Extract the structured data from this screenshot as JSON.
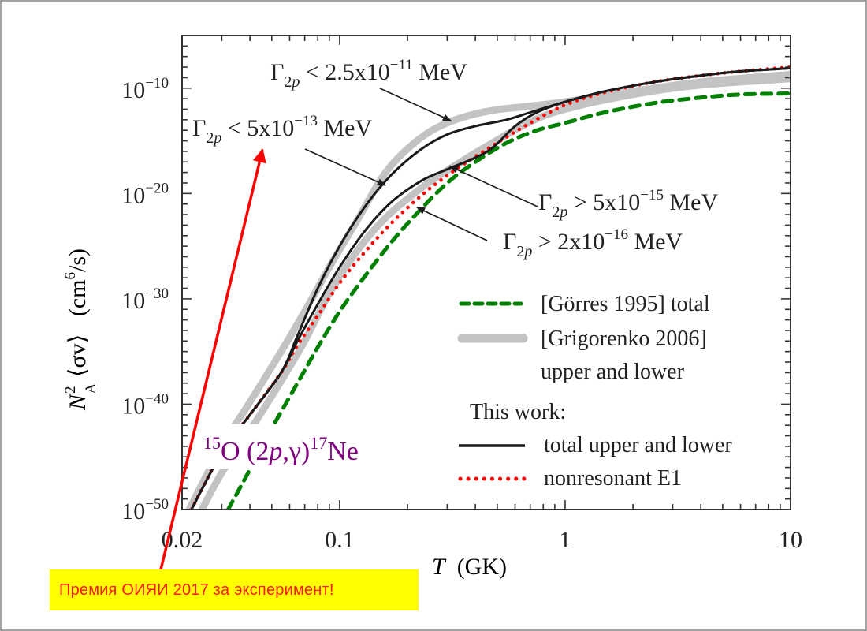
{
  "banner": {
    "text": "Премия ОИЯИ 2017 за эксперимент!",
    "background": "#ffff00",
    "text_color": "#ff1a1a"
  },
  "pointer_arrow": {
    "color": "#ff0000",
    "points_to": "Γ2p < 5x10^-13 MeV annotation"
  },
  "chart_data": {
    "type": "line",
    "title": "",
    "reaction_label": {
      "pre_sup": "15",
      "pre": "O (2",
      "italic": "p",
      "mid": ",γ)",
      "post_sup": "17",
      "post": "Ne",
      "color": "#800080"
    },
    "xlabel": {
      "italic": "T",
      "text": "(GK)"
    },
    "ylabel": {
      "main": "N",
      "sub": "A",
      "sup": "2",
      "rest": "⟨σv⟩",
      "units": "(cm",
      "units_sup": "6",
      "units_end": "/s)"
    },
    "xscale": "log",
    "yscale": "log",
    "xlim": [
      0.02,
      10
    ],
    "ylim_log10": [
      -50,
      -5
    ],
    "xticks": [
      {
        "value": 0.02,
        "label": "0.02"
      },
      {
        "value": 0.1,
        "label": "0.1"
      },
      {
        "value": 1,
        "label": "1"
      },
      {
        "value": 10,
        "label": "10"
      }
    ],
    "yticks": [
      {
        "log10": -10,
        "base": "10",
        "exp": "−10"
      },
      {
        "log10": -20,
        "base": "10",
        "exp": "−20"
      },
      {
        "log10": -30,
        "base": "10",
        "exp": "−30"
      },
      {
        "log10": -40,
        "base": "10",
        "exp": "−40"
      },
      {
        "log10": -50,
        "base": "10",
        "exp": "−50"
      }
    ],
    "grid": false,
    "legend_position": "bottom-right",
    "legend": [
      {
        "key": "gorres",
        "label": "[Görres 1995] total"
      },
      {
        "key": "grigorenko",
        "label": "[Grigorenko 2006]",
        "label2": "upper and lower"
      },
      {
        "key": "heading",
        "label": "This work:"
      },
      {
        "key": "this_total",
        "label": "total upper and lower"
      },
      {
        "key": "nonres",
        "label": "nonresonant E1"
      }
    ],
    "annotations": [
      {
        "text_pre": "Γ",
        "sub": "2p",
        "text": " < 2.5x10",
        "sup": "−11",
        "unit": " MeV",
        "target_T": 0.14,
        "target_log10": -17.5
      },
      {
        "text_pre": "Γ",
        "sub": "2p",
        "text": " < 5x10",
        "sup": "−13",
        "unit": " MeV",
        "target_T": 0.16,
        "target_log10": -19.3
      },
      {
        "text_pre": "Γ",
        "sub": "2p",
        "text": " > 5x10",
        "sup": "−15",
        "unit": " MeV",
        "target_T": 0.33,
        "target_log10": -17.8
      },
      {
        "text_pre": "Γ",
        "sub": "2p",
        "text": " > 2x10",
        "sup": "−16",
        "unit": " MeV",
        "target_T": 0.245,
        "target_log10": -21.3
      }
    ],
    "series": [
      {
        "name": "Grigorenko 2006 upper",
        "style": "gray-thick",
        "color": "#c0c0c0",
        "T": [
          0.0215,
          0.03,
          0.04,
          0.055,
          0.07,
          0.09,
          0.12,
          0.16,
          0.22,
          0.3,
          0.45,
          0.7,
          1.0,
          2.0,
          4.0,
          10.0
        ],
        "log10R": [
          -50,
          -44.0,
          -39.8,
          -35.0,
          -31.2,
          -27.0,
          -22.5,
          -18.0,
          -15.0,
          -13.3,
          -12.2,
          -11.7,
          -11.3,
          -10.3,
          -9.4,
          -8.7
        ]
      },
      {
        "name": "Grigorenko 2006 lower",
        "style": "gray-thick",
        "color": "#c0c0c0",
        "T": [
          0.0245,
          0.03,
          0.04,
          0.055,
          0.07,
          0.09,
          0.12,
          0.16,
          0.22,
          0.3,
          0.45,
          0.7,
          1.0,
          2.0,
          4.0,
          10.0
        ],
        "log10R": [
          -50,
          -46.5,
          -42.5,
          -37.8,
          -34.0,
          -29.5,
          -25.4,
          -22.3,
          -19.8,
          -17.8,
          -15.5,
          -13.2,
          -12.0,
          -10.6,
          -9.7,
          -9.1
        ]
      },
      {
        "name": "This work upper",
        "style": "black",
        "color": "#1a1a1a",
        "T": [
          0.022,
          0.03,
          0.04,
          0.055,
          0.065,
          0.08,
          0.1,
          0.13,
          0.17,
          0.23,
          0.3,
          0.4,
          0.55,
          0.7,
          1.0,
          1.5,
          2.5,
          4.0,
          6.0,
          10.0
        ],
        "log10R": [
          -50,
          -44.6,
          -41.0,
          -37.0,
          -33.5,
          -29.0,
          -25.0,
          -21.2,
          -18.2,
          -15.8,
          -14.4,
          -13.6,
          -13.0,
          -12.3,
          -11.3,
          -10.3,
          -9.4,
          -8.8,
          -8.4,
          -8.1
        ]
      },
      {
        "name": "This work lower",
        "style": "black",
        "color": "#1a1a1a",
        "T": [
          0.022,
          0.03,
          0.04,
          0.055,
          0.065,
          0.08,
          0.1,
          0.13,
          0.17,
          0.23,
          0.3,
          0.4,
          0.48,
          0.6,
          0.75,
          1.0,
          1.5,
          2.5,
          4.0,
          6.0,
          10.0
        ],
        "log10R": [
          -50,
          -44.6,
          -41.0,
          -37.0,
          -34.0,
          -30.5,
          -27.0,
          -23.5,
          -20.8,
          -18.8,
          -17.7,
          -16.6,
          -15.6,
          -13.6,
          -12.3,
          -11.3,
          -10.3,
          -9.4,
          -8.8,
          -8.4,
          -8.1
        ]
      },
      {
        "name": "nonresonant E1",
        "style": "red-dotted",
        "color": "#ff0000",
        "T": [
          0.022,
          0.03,
          0.04,
          0.055,
          0.065,
          0.08,
          0.1,
          0.13,
          0.17,
          0.23,
          0.3,
          0.4,
          0.5,
          0.7,
          1.0,
          1.5,
          2.5,
          4.0,
          6.0,
          10.0
        ],
        "log10R": [
          -50,
          -44.6,
          -41.0,
          -37.0,
          -34.4,
          -31.6,
          -28.5,
          -25.5,
          -22.8,
          -20.2,
          -18.3,
          -16.5,
          -15.2,
          -13.3,
          -11.6,
          -10.4,
          -9.4,
          -8.8,
          -8.4,
          -8.0
        ]
      },
      {
        "name": "Görres 1995 total",
        "style": "green-dashed",
        "color": "#008000",
        "T": [
          0.032,
          0.04,
          0.05,
          0.065,
          0.08,
          0.1,
          0.13,
          0.17,
          0.22,
          0.3,
          0.4,
          0.55,
          0.75,
          1.0,
          1.5,
          2.5,
          4.0,
          6.0,
          10.0
        ],
        "log10R": [
          -50,
          -46.2,
          -42.3,
          -38.0,
          -34.6,
          -31.2,
          -27.8,
          -24.6,
          -21.9,
          -19.0,
          -17.0,
          -15.2,
          -14.0,
          -13.3,
          -12.3,
          -11.4,
          -10.9,
          -10.6,
          -10.5
        ]
      }
    ]
  }
}
